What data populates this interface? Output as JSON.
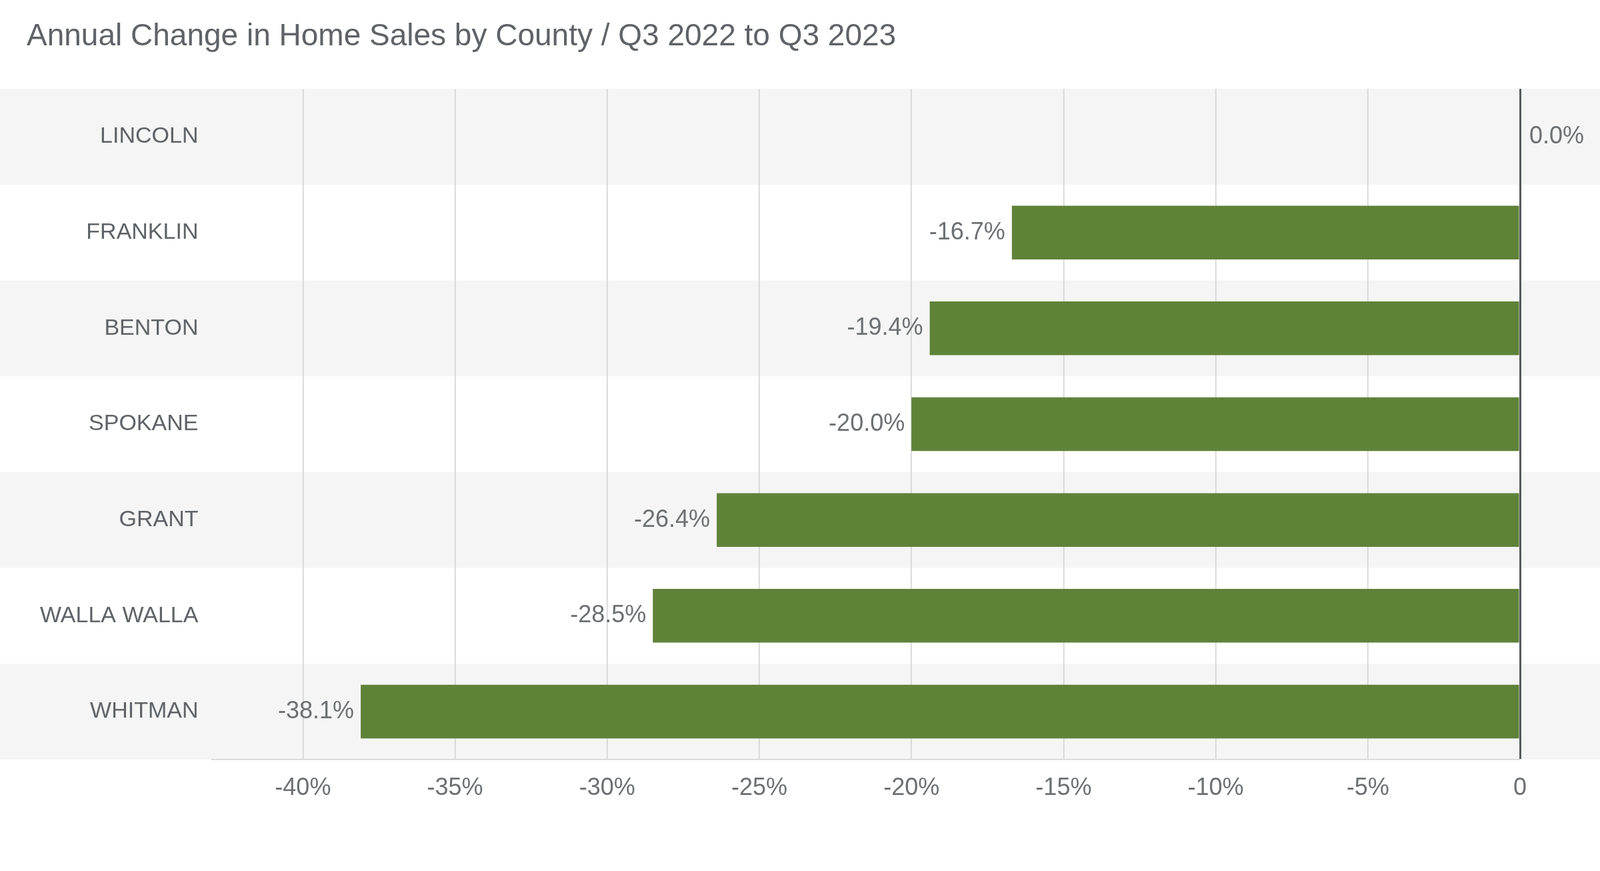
{
  "chart_data": {
    "type": "bar",
    "orientation": "horizontal",
    "title": "Annual Change in Home Sales by County / Q3 2022 to Q3 2023",
    "categories": [
      "LINCOLN",
      "FRANKLIN",
      "BENTON",
      "SPOKANE",
      "GRANT",
      "WALLA WALLA",
      "WHITMAN"
    ],
    "values": [
      0,
      -16.7,
      -19.4,
      -20,
      -26.4,
      -28.5,
      -38.1
    ],
    "value_labels": [
      "0.0%",
      "-16.7%",
      "-19.4%",
      "-20.0%",
      "-26.4%",
      "-28.5%",
      "-38.1%"
    ],
    "color": "#5f8239",
    "xlim": [
      -43,
      0
    ],
    "xticks": [
      {
        "value": -40,
        "label": "-40%"
      },
      {
        "value": -35,
        "label": "-35%"
      },
      {
        "value": -30,
        "label": "-30%"
      },
      {
        "value": -25,
        "label": "-25%"
      },
      {
        "value": -20,
        "label": "-20%"
      },
      {
        "value": -15,
        "label": "-15%"
      },
      {
        "value": -10,
        "label": "-10%"
      },
      {
        "value": -5,
        "label": "-5%"
      },
      0
    ],
    "grid": true,
    "data_labels": true
  }
}
